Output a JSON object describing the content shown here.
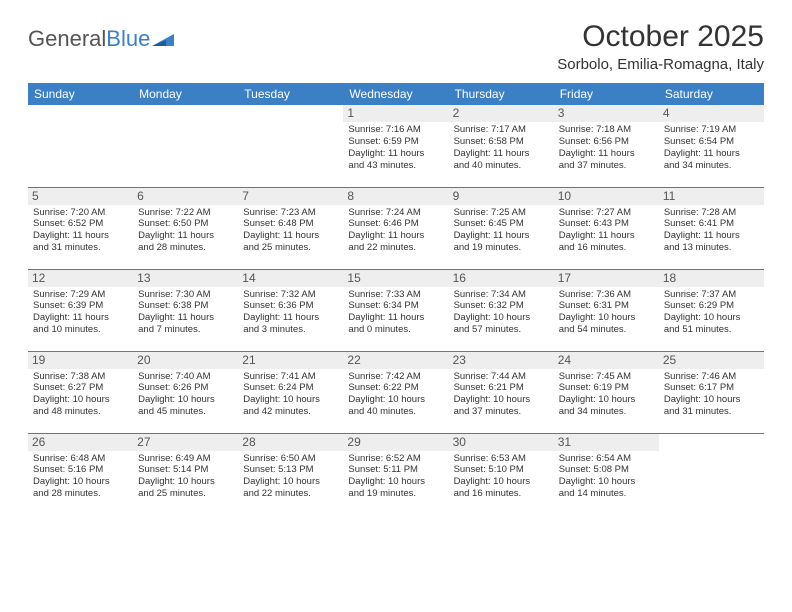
{
  "logo": {
    "text1": "General",
    "text2": "Blue"
  },
  "title": "October 2025",
  "location": "Sorbolo, Emilia-Romagna, Italy",
  "colors": {
    "header_bg": "#3b7fc4",
    "header_text": "#ffffff",
    "daynum_bg": "#eeeeee",
    "body_text": "#333333",
    "page_bg": "#ffffff"
  },
  "typography": {
    "title_fontsize": 30,
    "location_fontsize": 15,
    "dayheader_fontsize": 12,
    "daynum_fontsize": 12,
    "cell_fontsize": 9.5
  },
  "day_headers": [
    "Sunday",
    "Monday",
    "Tuesday",
    "Wednesday",
    "Thursday",
    "Friday",
    "Saturday"
  ],
  "weeks": [
    [
      null,
      null,
      null,
      {
        "n": "1",
        "sr": "Sunrise: 7:16 AM",
        "ss": "Sunset: 6:59 PM",
        "d1": "Daylight: 11 hours",
        "d2": "and 43 minutes."
      },
      {
        "n": "2",
        "sr": "Sunrise: 7:17 AM",
        "ss": "Sunset: 6:58 PM",
        "d1": "Daylight: 11 hours",
        "d2": "and 40 minutes."
      },
      {
        "n": "3",
        "sr": "Sunrise: 7:18 AM",
        "ss": "Sunset: 6:56 PM",
        "d1": "Daylight: 11 hours",
        "d2": "and 37 minutes."
      },
      {
        "n": "4",
        "sr": "Sunrise: 7:19 AM",
        "ss": "Sunset: 6:54 PM",
        "d1": "Daylight: 11 hours",
        "d2": "and 34 minutes."
      }
    ],
    [
      {
        "n": "5",
        "sr": "Sunrise: 7:20 AM",
        "ss": "Sunset: 6:52 PM",
        "d1": "Daylight: 11 hours",
        "d2": "and 31 minutes."
      },
      {
        "n": "6",
        "sr": "Sunrise: 7:22 AM",
        "ss": "Sunset: 6:50 PM",
        "d1": "Daylight: 11 hours",
        "d2": "and 28 minutes."
      },
      {
        "n": "7",
        "sr": "Sunrise: 7:23 AM",
        "ss": "Sunset: 6:48 PM",
        "d1": "Daylight: 11 hours",
        "d2": "and 25 minutes."
      },
      {
        "n": "8",
        "sr": "Sunrise: 7:24 AM",
        "ss": "Sunset: 6:46 PM",
        "d1": "Daylight: 11 hours",
        "d2": "and 22 minutes."
      },
      {
        "n": "9",
        "sr": "Sunrise: 7:25 AM",
        "ss": "Sunset: 6:45 PM",
        "d1": "Daylight: 11 hours",
        "d2": "and 19 minutes."
      },
      {
        "n": "10",
        "sr": "Sunrise: 7:27 AM",
        "ss": "Sunset: 6:43 PM",
        "d1": "Daylight: 11 hours",
        "d2": "and 16 minutes."
      },
      {
        "n": "11",
        "sr": "Sunrise: 7:28 AM",
        "ss": "Sunset: 6:41 PM",
        "d1": "Daylight: 11 hours",
        "d2": "and 13 minutes."
      }
    ],
    [
      {
        "n": "12",
        "sr": "Sunrise: 7:29 AM",
        "ss": "Sunset: 6:39 PM",
        "d1": "Daylight: 11 hours",
        "d2": "and 10 minutes."
      },
      {
        "n": "13",
        "sr": "Sunrise: 7:30 AM",
        "ss": "Sunset: 6:38 PM",
        "d1": "Daylight: 11 hours",
        "d2": "and 7 minutes."
      },
      {
        "n": "14",
        "sr": "Sunrise: 7:32 AM",
        "ss": "Sunset: 6:36 PM",
        "d1": "Daylight: 11 hours",
        "d2": "and 3 minutes."
      },
      {
        "n": "15",
        "sr": "Sunrise: 7:33 AM",
        "ss": "Sunset: 6:34 PM",
        "d1": "Daylight: 11 hours",
        "d2": "and 0 minutes."
      },
      {
        "n": "16",
        "sr": "Sunrise: 7:34 AM",
        "ss": "Sunset: 6:32 PM",
        "d1": "Daylight: 10 hours",
        "d2": "and 57 minutes."
      },
      {
        "n": "17",
        "sr": "Sunrise: 7:36 AM",
        "ss": "Sunset: 6:31 PM",
        "d1": "Daylight: 10 hours",
        "d2": "and 54 minutes."
      },
      {
        "n": "18",
        "sr": "Sunrise: 7:37 AM",
        "ss": "Sunset: 6:29 PM",
        "d1": "Daylight: 10 hours",
        "d2": "and 51 minutes."
      }
    ],
    [
      {
        "n": "19",
        "sr": "Sunrise: 7:38 AM",
        "ss": "Sunset: 6:27 PM",
        "d1": "Daylight: 10 hours",
        "d2": "and 48 minutes."
      },
      {
        "n": "20",
        "sr": "Sunrise: 7:40 AM",
        "ss": "Sunset: 6:26 PM",
        "d1": "Daylight: 10 hours",
        "d2": "and 45 minutes."
      },
      {
        "n": "21",
        "sr": "Sunrise: 7:41 AM",
        "ss": "Sunset: 6:24 PM",
        "d1": "Daylight: 10 hours",
        "d2": "and 42 minutes."
      },
      {
        "n": "22",
        "sr": "Sunrise: 7:42 AM",
        "ss": "Sunset: 6:22 PM",
        "d1": "Daylight: 10 hours",
        "d2": "and 40 minutes."
      },
      {
        "n": "23",
        "sr": "Sunrise: 7:44 AM",
        "ss": "Sunset: 6:21 PM",
        "d1": "Daylight: 10 hours",
        "d2": "and 37 minutes."
      },
      {
        "n": "24",
        "sr": "Sunrise: 7:45 AM",
        "ss": "Sunset: 6:19 PM",
        "d1": "Daylight: 10 hours",
        "d2": "and 34 minutes."
      },
      {
        "n": "25",
        "sr": "Sunrise: 7:46 AM",
        "ss": "Sunset: 6:17 PM",
        "d1": "Daylight: 10 hours",
        "d2": "and 31 minutes."
      }
    ],
    [
      {
        "n": "26",
        "sr": "Sunrise: 6:48 AM",
        "ss": "Sunset: 5:16 PM",
        "d1": "Daylight: 10 hours",
        "d2": "and 28 minutes."
      },
      {
        "n": "27",
        "sr": "Sunrise: 6:49 AM",
        "ss": "Sunset: 5:14 PM",
        "d1": "Daylight: 10 hours",
        "d2": "and 25 minutes."
      },
      {
        "n": "28",
        "sr": "Sunrise: 6:50 AM",
        "ss": "Sunset: 5:13 PM",
        "d1": "Daylight: 10 hours",
        "d2": "and 22 minutes."
      },
      {
        "n": "29",
        "sr": "Sunrise: 6:52 AM",
        "ss": "Sunset: 5:11 PM",
        "d1": "Daylight: 10 hours",
        "d2": "and 19 minutes."
      },
      {
        "n": "30",
        "sr": "Sunrise: 6:53 AM",
        "ss": "Sunset: 5:10 PM",
        "d1": "Daylight: 10 hours",
        "d2": "and 16 minutes."
      },
      {
        "n": "31",
        "sr": "Sunrise: 6:54 AM",
        "ss": "Sunset: 5:08 PM",
        "d1": "Daylight: 10 hours",
        "d2": "and 14 minutes."
      },
      null
    ]
  ]
}
